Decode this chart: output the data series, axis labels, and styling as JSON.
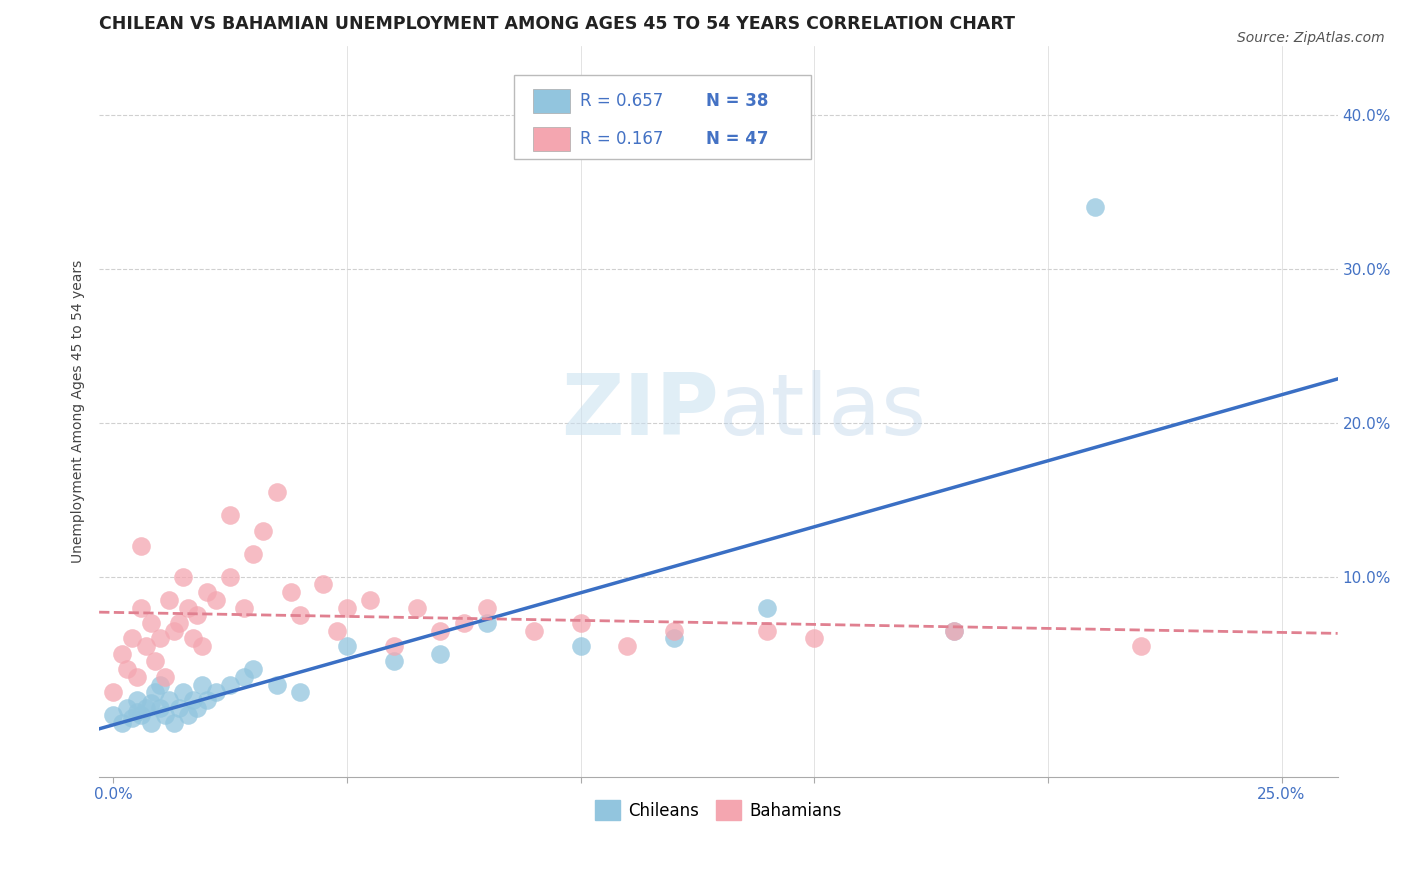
{
  "title": "CHILEAN VS BAHAMIAN UNEMPLOYMENT AMONG AGES 45 TO 54 YEARS CORRELATION CHART",
  "source": "Source: ZipAtlas.com",
  "ylabel": "Unemployment Among Ages 45 to 54 years",
  "xlim": [
    -0.003,
    0.262
  ],
  "ylim": [
    -0.03,
    0.445
  ],
  "xticks": [
    0.0,
    0.05,
    0.1,
    0.15,
    0.2,
    0.25
  ],
  "xticklabels": [
    "0.0%",
    "",
    "",
    "",
    "",
    "25.0%"
  ],
  "yticks": [
    0.0,
    0.1,
    0.2,
    0.3,
    0.4
  ],
  "yticklabels": [
    "",
    "10.0%",
    "20.0%",
    "30.0%",
    "40.0%"
  ],
  "legend_r1": "R = 0.657",
  "legend_n1": "N = 38",
  "legend_r2": "R = 0.167",
  "legend_n2": "N = 47",
  "chilean_color": "#92c5de",
  "bahamian_color": "#f4a6b0",
  "chilean_line_color": "#3a6fc4",
  "bahamian_line_color": "#e08090",
  "text_blue": "#4472c4",
  "watermark_color": "#c8e0f0",
  "title_fontsize": 12.5,
  "tick_fontsize": 11,
  "source_fontsize": 10,
  "legend_fontsize": 12,
  "ylabel_fontsize": 10,
  "chilean_x": [
    0.0,
    0.002,
    0.003,
    0.004,
    0.005,
    0.005,
    0.006,
    0.007,
    0.008,
    0.008,
    0.009,
    0.01,
    0.01,
    0.011,
    0.012,
    0.013,
    0.014,
    0.015,
    0.016,
    0.017,
    0.018,
    0.019,
    0.02,
    0.022,
    0.025,
    0.028,
    0.03,
    0.035,
    0.04,
    0.05,
    0.06,
    0.07,
    0.08,
    0.1,
    0.12,
    0.14,
    0.18,
    0.21
  ],
  "chilean_y": [
    0.01,
    0.005,
    0.015,
    0.008,
    0.012,
    0.02,
    0.01,
    0.015,
    0.005,
    0.018,
    0.025,
    0.015,
    0.03,
    0.01,
    0.02,
    0.005,
    0.015,
    0.025,
    0.01,
    0.02,
    0.015,
    0.03,
    0.02,
    0.025,
    0.03,
    0.035,
    0.04,
    0.03,
    0.025,
    0.055,
    0.045,
    0.05,
    0.07,
    0.055,
    0.06,
    0.08,
    0.065,
    0.34
  ],
  "bahamian_x": [
    0.0,
    0.002,
    0.003,
    0.004,
    0.005,
    0.006,
    0.006,
    0.007,
    0.008,
    0.009,
    0.01,
    0.011,
    0.012,
    0.013,
    0.014,
    0.015,
    0.016,
    0.017,
    0.018,
    0.019,
    0.02,
    0.022,
    0.025,
    0.025,
    0.028,
    0.03,
    0.032,
    0.035,
    0.038,
    0.04,
    0.045,
    0.048,
    0.05,
    0.055,
    0.06,
    0.065,
    0.07,
    0.075,
    0.08,
    0.09,
    0.1,
    0.11,
    0.12,
    0.14,
    0.15,
    0.18,
    0.22
  ],
  "bahamian_y": [
    0.025,
    0.05,
    0.04,
    0.06,
    0.035,
    0.08,
    0.12,
    0.055,
    0.07,
    0.045,
    0.06,
    0.035,
    0.085,
    0.065,
    0.07,
    0.1,
    0.08,
    0.06,
    0.075,
    0.055,
    0.09,
    0.085,
    0.1,
    0.14,
    0.08,
    0.115,
    0.13,
    0.155,
    0.09,
    0.075,
    0.095,
    0.065,
    0.08,
    0.085,
    0.055,
    0.08,
    0.065,
    0.07,
    0.08,
    0.065,
    0.07,
    0.055,
    0.065,
    0.065,
    0.06,
    0.065,
    0.055
  ]
}
